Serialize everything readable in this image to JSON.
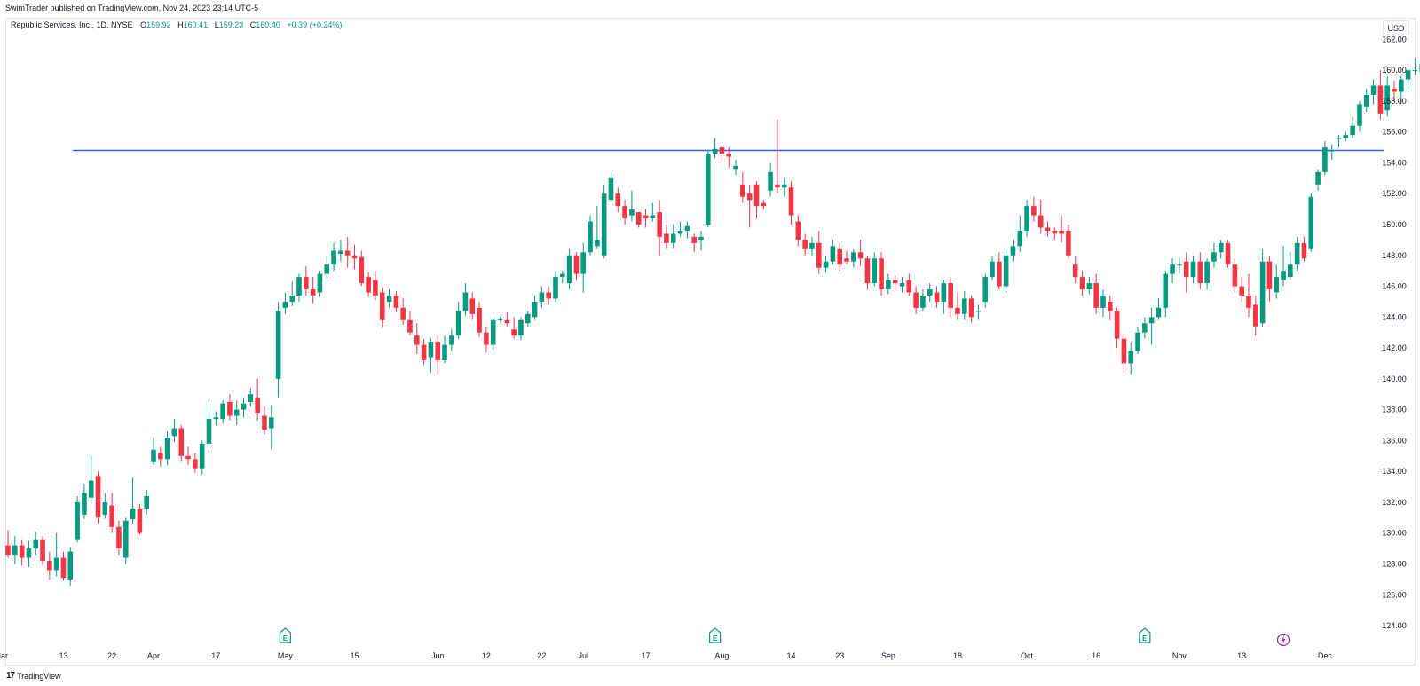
{
  "publisher_line": "SwimTrader published on TradingView.com, Nov 24, 2023 23:14 UTC-5",
  "legend": {
    "symbol": "Republic Services, Inc., 1D, NYSE",
    "open_label": "O",
    "open": "159.92",
    "high_label": "H",
    "high": "160.41",
    "low_label": "L",
    "low": "159.23",
    "close_label": "C",
    "close": "160.40",
    "change": "+0.39 (+0.24%)"
  },
  "currency": "USD",
  "brand": {
    "logo": "17",
    "name": "TradingView"
  },
  "colors": {
    "up": "#089981",
    "down": "#f23645",
    "hline": "#2962ff",
    "axis_text": "#131722",
    "border": "#e0e3eb",
    "dividend": "#9c27b0"
  },
  "icons": {
    "earnings": "earnings-icon",
    "dividend": "dividend-lightning-icon",
    "logo": "tradingview-logo-icon"
  },
  "chart_data": {
    "type": "candlestick",
    "title": "",
    "ylabel": "",
    "xlabel": "",
    "ylim": [
      123.6,
      163.4
    ],
    "y_ticks": [
      "124.00",
      "126.00",
      "128.00",
      "130.00",
      "132.00",
      "134.00",
      "136.00",
      "138.00",
      "140.00",
      "142.00",
      "144.00",
      "146.00",
      "148.00",
      "150.00",
      "152.00",
      "154.00",
      "156.00",
      "158.00",
      "160.00",
      "162.00"
    ],
    "x_ticks": [
      {
        "label": "Mar",
        "i": -1
      },
      {
        "label": "13",
        "i": 8
      },
      {
        "label": "22",
        "i": 15
      },
      {
        "label": "Apr",
        "i": 21
      },
      {
        "label": "17",
        "i": 30
      },
      {
        "label": "May",
        "i": 40
      },
      {
        "label": "15",
        "i": 50
      },
      {
        "label": "Jun",
        "i": 62
      },
      {
        "label": "12",
        "i": 69
      },
      {
        "label": "22",
        "i": 77
      },
      {
        "label": "Jul",
        "i": 83
      },
      {
        "label": "17",
        "i": 92
      },
      {
        "label": "Aug",
        "i": 103
      },
      {
        "label": "14",
        "i": 113
      },
      {
        "label": "23",
        "i": 120
      },
      {
        "label": "Sep",
        "i": 127
      },
      {
        "label": "18",
        "i": 137
      },
      {
        "label": "Oct",
        "i": 147
      },
      {
        "label": "16",
        "i": 157
      },
      {
        "label": "Nov",
        "i": 169
      },
      {
        "label": "13",
        "i": 178
      },
      {
        "label": "Dec",
        "i": 190
      }
    ],
    "horizontal_line": 154.8,
    "earnings_markers": [
      40,
      102,
      164
    ],
    "dividend_markers": [
      184
    ],
    "candles": [
      [
        129.2,
        128.6,
        130.2,
        128.4
      ],
      [
        128.6,
        129.2,
        129.8,
        128.0
      ],
      [
        129.2,
        128.4,
        129.6,
        127.9
      ],
      [
        128.4,
        129.0,
        129.5,
        127.8
      ],
      [
        129.0,
        129.6,
        130.1,
        128.6
      ],
      [
        129.6,
        128.2,
        129.8,
        127.9
      ],
      [
        128.2,
        127.6,
        128.8,
        127.0
      ],
      [
        127.6,
        128.4,
        130.0,
        127.2
      ],
      [
        128.4,
        127.1,
        128.8,
        126.9
      ],
      [
        127.0,
        128.8,
        129.1,
        126.6
      ],
      [
        129.6,
        132.0,
        132.4,
        129.4
      ],
      [
        131.2,
        132.6,
        133.2,
        130.9
      ],
      [
        132.3,
        133.4,
        135.0,
        131.9
      ],
      [
        133.7,
        131.0,
        134.0,
        130.6
      ],
      [
        131.2,
        132.0,
        132.6,
        130.9
      ],
      [
        131.8,
        130.4,
        132.6,
        130.0
      ],
      [
        130.4,
        129.0,
        130.8,
        128.6
      ],
      [
        128.4,
        130.8,
        131.0,
        128.0
      ],
      [
        130.9,
        131.6,
        133.6,
        130.6
      ],
      [
        131.6,
        130.0,
        131.9,
        129.9
      ],
      [
        131.6,
        132.4,
        132.8,
        131.2
      ],
      [
        134.6,
        135.4,
        136.2,
        134.4
      ],
      [
        135.2,
        134.8,
        135.6,
        134.3
      ],
      [
        134.8,
        136.2,
        136.6,
        134.4
      ],
      [
        136.3,
        136.8,
        137.4,
        135.9
      ],
      [
        136.8,
        135.0,
        137.0,
        134.6
      ],
      [
        135.0,
        134.8,
        135.6,
        134.4
      ],
      [
        134.8,
        134.2,
        135.2,
        133.9
      ],
      [
        134.2,
        135.8,
        136.0,
        133.8
      ],
      [
        135.8,
        137.4,
        138.4,
        135.5
      ],
      [
        137.4,
        137.5,
        137.9,
        137.0
      ],
      [
        137.4,
        138.4,
        138.6,
        137.1
      ],
      [
        138.5,
        137.6,
        139.0,
        137.3
      ],
      [
        137.6,
        138.0,
        138.6,
        137.0
      ],
      [
        138.0,
        138.4,
        138.8,
        137.5
      ],
      [
        138.5,
        139.0,
        139.4,
        138.2
      ],
      [
        138.8,
        137.8,
        140.0,
        137.3
      ],
      [
        137.6,
        136.7,
        138.2,
        136.4
      ],
      [
        136.8,
        137.5,
        138.3,
        135.4
      ],
      [
        140.0,
        144.4,
        145.0,
        138.8
      ],
      [
        144.6,
        145.0,
        145.6,
        144.2
      ],
      [
        145.0,
        145.4,
        146.3,
        144.7
      ],
      [
        145.4,
        146.6,
        146.8,
        145.0
      ],
      [
        146.6,
        145.8,
        147.3,
        145.4
      ],
      [
        145.8,
        145.4,
        146.6,
        144.9
      ],
      [
        145.6,
        146.8,
        147.0,
        145.3
      ],
      [
        146.8,
        147.4,
        148.0,
        146.5
      ],
      [
        147.4,
        148.3,
        148.8,
        147.0
      ],
      [
        148.1,
        148.3,
        149.0,
        147.6
      ],
      [
        148.3,
        148.0,
        149.2,
        147.2
      ],
      [
        148.0,
        147.8,
        148.7,
        147.1
      ],
      [
        147.9,
        146.2,
        148.3,
        146.0
      ],
      [
        146.6,
        145.6,
        146.9,
        145.3
      ],
      [
        146.4,
        145.4,
        147.0,
        145.1
      ],
      [
        145.6,
        143.8,
        145.9,
        143.3
      ],
      [
        145.0,
        145.4,
        145.8,
        144.6
      ],
      [
        145.4,
        144.6,
        145.7,
        144.3
      ],
      [
        144.6,
        143.8,
        145.2,
        143.5
      ],
      [
        143.8,
        143.0,
        144.4,
        142.8
      ],
      [
        142.8,
        142.2,
        143.6,
        141.6
      ],
      [
        142.2,
        141.2,
        142.6,
        140.9
      ],
      [
        141.4,
        142.4,
        142.6,
        140.4
      ],
      [
        142.4,
        141.2,
        142.8,
        140.3
      ],
      [
        141.2,
        142.2,
        142.8,
        141.0
      ],
      [
        142.2,
        142.8,
        143.2,
        141.8
      ],
      [
        142.8,
        144.4,
        145.0,
        142.6
      ],
      [
        144.4,
        145.6,
        146.2,
        144.1
      ],
      [
        145.2,
        144.2,
        145.6,
        143.8
      ],
      [
        144.6,
        143.0,
        145.0,
        142.7
      ],
      [
        143.0,
        142.2,
        143.4,
        141.7
      ],
      [
        142.2,
        143.8,
        144.0,
        141.9
      ],
      [
        143.8,
        143.9,
        144.0,
        143.7
      ],
      [
        143.8,
        143.6,
        144.3,
        143.4
      ],
      [
        143.2,
        142.8,
        144.0,
        142.6
      ],
      [
        142.8,
        143.8,
        144.0,
        142.5
      ],
      [
        143.6,
        144.2,
        144.4,
        143.4
      ],
      [
        144.0,
        145.0,
        145.4,
        143.8
      ],
      [
        145.0,
        145.6,
        146.0,
        144.6
      ],
      [
        145.6,
        145.2,
        146.0,
        144.8
      ],
      [
        145.2,
        146.6,
        147.0,
        145.0
      ],
      [
        146.6,
        146.8,
        147.0,
        146.2
      ],
      [
        146.2,
        148.0,
        148.4,
        145.8
      ],
      [
        148.0,
        146.8,
        148.2,
        146.4
      ],
      [
        146.8,
        148.2,
        148.8,
        145.6
      ],
      [
        148.2,
        150.2,
        150.6,
        148.0
      ],
      [
        148.6,
        149.0,
        151.2,
        148.4
      ],
      [
        148.0,
        152.0,
        152.6,
        147.8
      ],
      [
        151.6,
        153.0,
        153.4,
        151.4
      ],
      [
        152.0,
        151.2,
        152.4,
        150.8
      ],
      [
        151.2,
        150.4,
        151.6,
        150.0
      ],
      [
        150.6,
        151.0,
        152.2,
        150.2
      ],
      [
        150.8,
        150.0,
        150.6,
        149.8
      ],
      [
        150.6,
        150.4,
        151.0,
        149.8
      ],
      [
        150.4,
        150.6,
        151.4,
        150.2
      ],
      [
        150.8,
        149.2,
        151.6,
        148.0
      ],
      [
        149.4,
        148.8,
        150.0,
        148.4
      ],
      [
        148.8,
        149.4,
        150.0,
        148.4
      ],
      [
        149.4,
        149.6,
        150.2,
        149.2
      ],
      [
        149.6,
        149.9,
        150.2,
        149.1
      ],
      [
        149.2,
        148.8,
        149.4,
        148.2
      ],
      [
        149.0,
        149.2,
        149.6,
        148.3
      ],
      [
        150.0,
        154.6,
        154.8,
        149.8
      ],
      [
        154.6,
        154.9,
        155.6,
        154.3
      ],
      [
        155.0,
        154.6,
        155.2,
        154.0
      ],
      [
        154.6,
        154.4,
        155.0,
        153.7
      ],
      [
        153.6,
        153.8,
        154.2,
        153.2
      ],
      [
        152.6,
        151.8,
        153.4,
        151.4
      ],
      [
        152.0,
        151.6,
        152.6,
        149.8
      ],
      [
        152.6,
        151.2,
        152.8,
        150.4
      ],
      [
        151.4,
        151.2,
        151.6,
        151.0
      ],
      [
        152.2,
        153.4,
        154.0,
        151.8
      ],
      [
        152.6,
        152.4,
        156.8,
        152.0
      ],
      [
        152.4,
        152.6,
        153.0,
        151.8
      ],
      [
        152.4,
        150.6,
        152.8,
        150.0
      ],
      [
        150.2,
        149.0,
        150.6,
        148.6
      ],
      [
        149.0,
        148.4,
        149.4,
        148.0
      ],
      [
        148.4,
        148.8,
        149.2,
        148.0
      ],
      [
        148.8,
        147.2,
        149.6,
        146.8
      ],
      [
        147.2,
        147.6,
        148.0,
        146.9
      ],
      [
        147.6,
        148.6,
        149.0,
        147.4
      ],
      [
        148.4,
        147.4,
        148.8,
        147.0
      ],
      [
        147.8,
        147.6,
        148.3,
        147.4
      ],
      [
        147.6,
        148.2,
        148.4,
        147.2
      ],
      [
        148.2,
        147.8,
        149.0,
        147.3
      ],
      [
        147.8,
        146.2,
        148.0,
        145.8
      ],
      [
        146.2,
        147.8,
        148.2,
        146.0
      ],
      [
        147.8,
        145.8,
        148.2,
        145.4
      ],
      [
        145.8,
        146.4,
        146.8,
        145.5
      ],
      [
        146.4,
        146.2,
        146.7,
        145.7
      ],
      [
        146.0,
        146.2,
        146.6,
        145.6
      ],
      [
        146.4,
        145.6,
        146.8,
        145.4
      ],
      [
        145.6,
        144.6,
        146.0,
        144.2
      ],
      [
        144.6,
        145.4,
        145.8,
        144.4
      ],
      [
        145.4,
        145.8,
        146.2,
        145.0
      ],
      [
        145.6,
        145.0,
        146.0,
        144.6
      ],
      [
        145.0,
        146.2,
        146.4,
        144.2
      ],
      [
        146.2,
        144.6,
        146.6,
        144.0
      ],
      [
        144.6,
        144.2,
        145.6,
        143.8
      ],
      [
        144.2,
        145.2,
        145.7,
        143.8
      ],
      [
        145.2,
        144.0,
        145.4,
        143.6
      ],
      [
        144.4,
        144.4,
        144.8,
        143.8
      ],
      [
        145.0,
        146.6,
        146.8,
        144.6
      ],
      [
        146.6,
        147.6,
        148.0,
        146.4
      ],
      [
        147.6,
        146.0,
        148.2,
        145.8
      ],
      [
        146.0,
        148.0,
        148.4,
        145.6
      ],
      [
        148.0,
        148.6,
        149.0,
        147.6
      ],
      [
        148.6,
        149.6,
        150.6,
        148.2
      ],
      [
        149.6,
        151.2,
        151.6,
        149.2
      ],
      [
        151.2,
        150.6,
        151.8,
        150.2
      ],
      [
        150.6,
        149.8,
        151.6,
        149.4
      ],
      [
        149.8,
        149.6,
        150.2,
        149.2
      ],
      [
        149.6,
        149.4,
        149.8,
        149.0
      ],
      [
        149.6,
        149.4,
        150.6,
        148.8
      ],
      [
        149.6,
        148.0,
        150.0,
        147.8
      ],
      [
        147.4,
        146.6,
        148.0,
        146.2
      ],
      [
        146.6,
        145.8,
        147.0,
        145.4
      ],
      [
        145.8,
        146.2,
        146.6,
        145.5
      ],
      [
        146.2,
        144.6,
        146.8,
        144.2
      ],
      [
        144.6,
        145.4,
        145.8,
        144.0
      ],
      [
        145.0,
        144.4,
        145.4,
        143.8
      ],
      [
        144.4,
        142.6,
        144.6,
        142.0
      ],
      [
        142.6,
        141.0,
        142.8,
        140.4
      ],
      [
        141.0,
        141.8,
        142.4,
        140.3
      ],
      [
        141.8,
        143.0,
        143.4,
        141.6
      ],
      [
        143.0,
        143.6,
        144.0,
        142.6
      ],
      [
        143.6,
        144.0,
        144.6,
        142.2
      ],
      [
        144.0,
        144.6,
        145.2,
        143.8
      ],
      [
        144.6,
        146.8,
        147.0,
        144.0
      ],
      [
        146.8,
        147.4,
        147.8,
        146.2
      ],
      [
        147.4,
        147.4,
        147.8,
        146.8
      ],
      [
        147.6,
        146.6,
        148.2,
        145.6
      ],
      [
        146.6,
        147.6,
        148.0,
        146.2
      ],
      [
        147.6,
        146.2,
        148.2,
        145.8
      ],
      [
        146.2,
        147.6,
        147.8,
        145.8
      ],
      [
        147.6,
        148.2,
        148.8,
        147.2
      ],
      [
        148.2,
        148.8,
        149.0,
        147.8
      ],
      [
        148.8,
        147.4,
        149.0,
        147.2
      ],
      [
        147.4,
        146.0,
        147.8,
        145.6
      ],
      [
        146.0,
        145.4,
        146.6,
        145.0
      ],
      [
        145.4,
        144.6,
        146.8,
        144.0
      ],
      [
        144.8,
        143.4,
        145.4,
        142.8
      ],
      [
        143.6,
        147.6,
        148.4,
        143.4
      ],
      [
        147.6,
        145.8,
        148.0,
        145.0
      ],
      [
        145.6,
        146.6,
        147.4,
        145.2
      ],
      [
        146.4,
        147.0,
        148.6,
        146.0
      ],
      [
        146.6,
        147.4,
        148.2,
        146.4
      ],
      [
        147.4,
        148.8,
        149.2,
        147.0
      ],
      [
        148.8,
        147.8,
        149.2,
        147.6
      ],
      [
        148.4,
        151.8,
        152.0,
        148.2
      ],
      [
        152.6,
        153.4,
        153.6,
        152.2
      ],
      [
        153.4,
        155.0,
        155.4,
        153.2
      ],
      [
        154.8,
        154.8,
        155.2,
        154.2
      ],
      [
        155.6,
        155.6,
        155.8,
        155.0
      ],
      [
        155.6,
        155.8,
        156.0,
        155.4
      ],
      [
        155.8,
        156.4,
        157.0,
        155.6
      ],
      [
        156.4,
        157.8,
        158.0,
        156.0
      ],
      [
        157.6,
        158.4,
        158.8,
        157.3
      ],
      [
        158.4,
        159.0,
        159.4,
        157.8
      ],
      [
        159.0,
        157.2,
        160.0,
        156.8
      ],
      [
        157.4,
        159.0,
        159.6,
        157.0
      ],
      [
        158.8,
        158.6,
        159.3,
        158.0
      ],
      [
        158.6,
        159.4,
        159.6,
        157.8
      ],
      [
        159.4,
        160.0,
        160.1,
        158.8
      ],
      [
        160.0,
        160.0,
        160.8,
        159.7
      ],
      [
        159.9,
        160.4,
        160.4,
        159.2
      ]
    ]
  }
}
